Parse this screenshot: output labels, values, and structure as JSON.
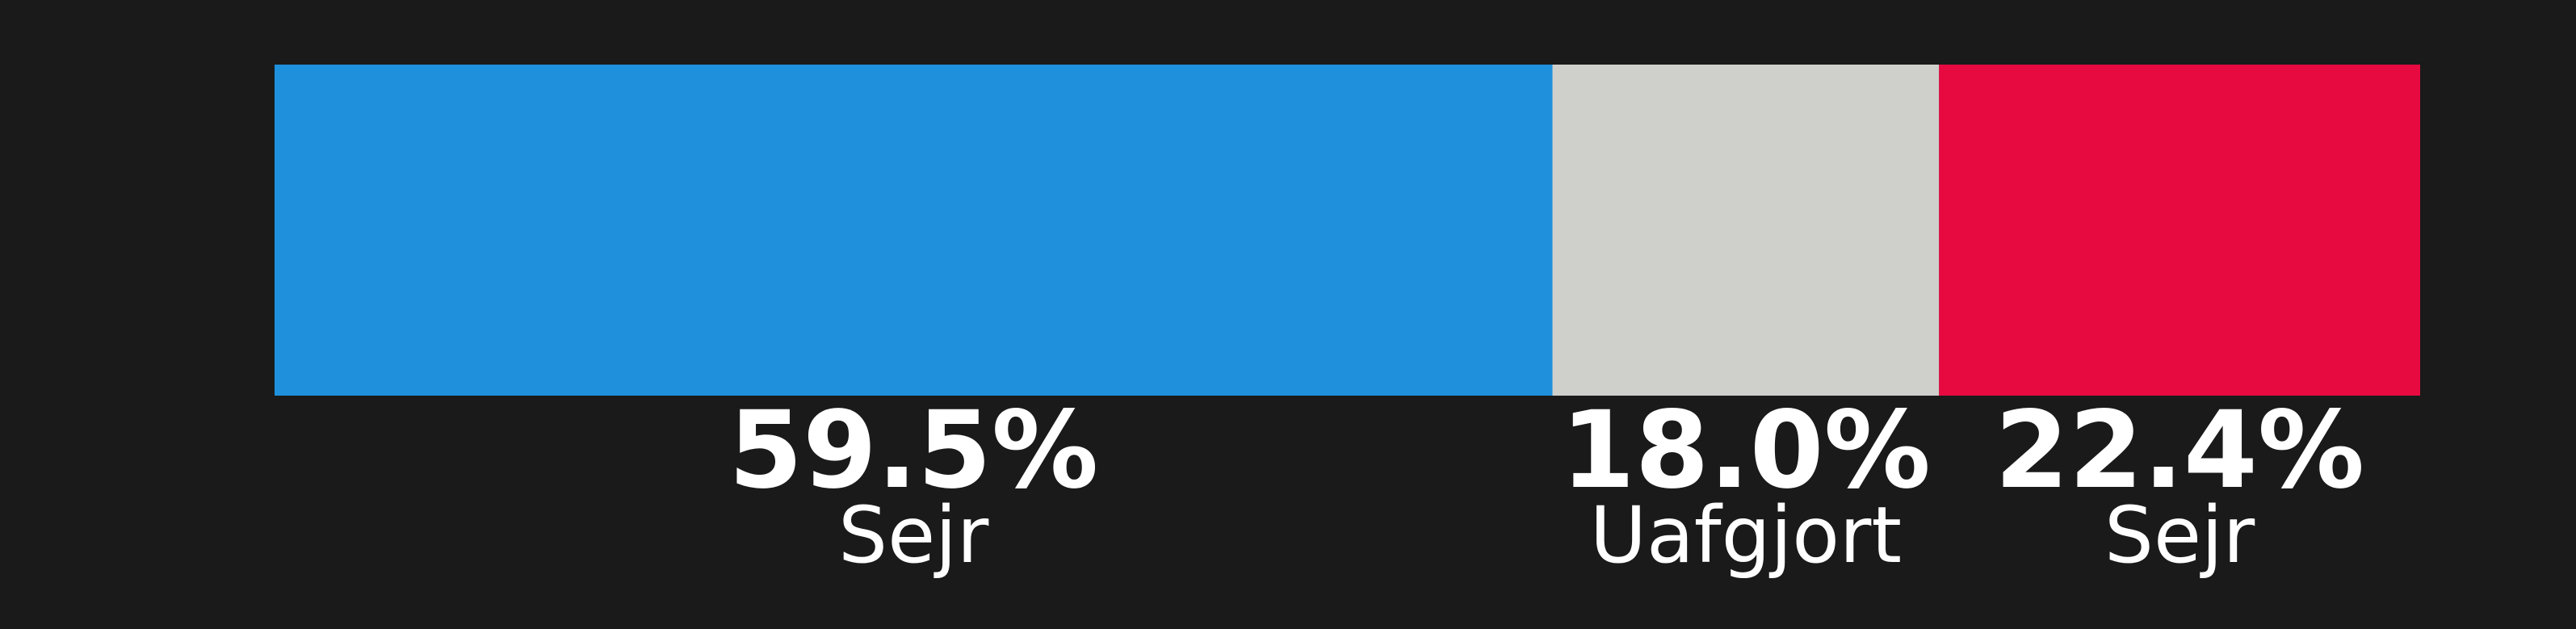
{
  "chart_data": {
    "type": "bar",
    "orientation": "horizontal-stacked",
    "categories": [
      "Sejr",
      "Uafgjort",
      "Sejr"
    ],
    "values": [
      59.5,
      18.0,
      22.4
    ],
    "value_labels": [
      "59.5%",
      "18.0%",
      "22.4%"
    ],
    "colors": [
      "#1f90dc",
      "#cfcfcc",
      "#e60a41"
    ],
    "xlim": [
      0,
      99.9
    ],
    "grid": false,
    "legend": "none"
  },
  "colors": {
    "background": "#1a1a1a",
    "text": "#ffffff"
  }
}
